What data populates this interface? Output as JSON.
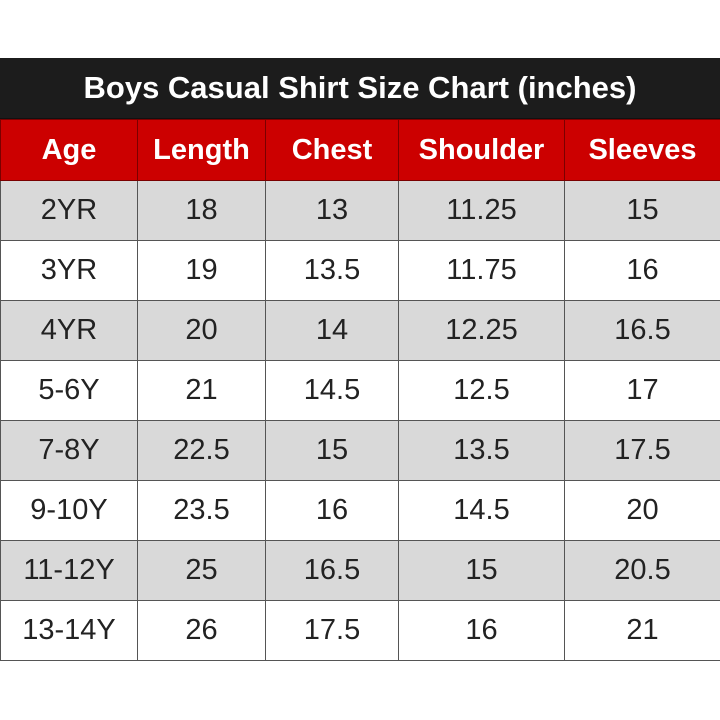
{
  "chart_data": {
    "type": "table",
    "title": "Boys Casual Shirt Size Chart (inches)",
    "columns": [
      "Age",
      "Length",
      "Chest",
      "Shoulder",
      "Sleeves"
    ],
    "rows": [
      [
        "2YR",
        "18",
        "13",
        "11.25",
        "15"
      ],
      [
        "3YR",
        "19",
        "13.5",
        "11.75",
        "16"
      ],
      [
        "4YR",
        "20",
        "14",
        "12.25",
        "16.5"
      ],
      [
        "5-6Y",
        "21",
        "14.5",
        "12.5",
        "17"
      ],
      [
        "7-8Y",
        "22.5",
        "15",
        "13.5",
        "17.5"
      ],
      [
        "9-10Y",
        "23.5",
        "16",
        "14.5",
        "20"
      ],
      [
        "11-12Y",
        "25",
        "16.5",
        "15",
        "20.5"
      ],
      [
        "13-14Y",
        "26",
        "17.5",
        "16",
        "21"
      ]
    ]
  },
  "colors": {
    "title_bg": "#1c1c1c",
    "header_bg": "#cc0000",
    "shaded_row": "#d9d9d9",
    "plain_row": "#ffffff"
  }
}
